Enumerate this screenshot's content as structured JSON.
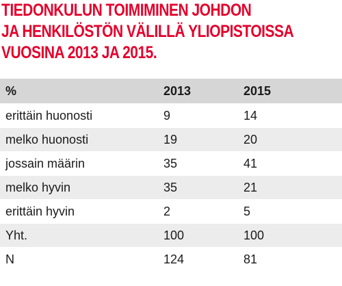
{
  "chart_data": {
    "type": "table",
    "title_lines": [
      "TIEDONKULUN TOIMIMINEN JOHDON",
      "JA HENKILÖSTÖN VÄLILLÄ YLIOPISTOISSA",
      "VUOSINA 2013 JA 2015."
    ],
    "columns": [
      "%",
      "2013",
      "2015"
    ],
    "rows": [
      {
        "label": "erittäin huonosti",
        "v2013": "9",
        "v2015": "14"
      },
      {
        "label": "melko huonosti",
        "v2013": "19",
        "v2015": "20"
      },
      {
        "label": "jossain määrin",
        "v2013": "35",
        "v2015": "41"
      },
      {
        "label": "melko hyvin",
        "v2013": "35",
        "v2015": "21"
      },
      {
        "label": "erittäin hyvin",
        "v2013": "2",
        "v2015": "5"
      },
      {
        "label": "Yht.",
        "v2013": "100",
        "v2015": "100"
      },
      {
        "label": "N",
        "v2013": "124",
        "v2015": "81"
      }
    ]
  },
  "colors": {
    "title": "#e4002b",
    "header_bg": "#d6d6d6",
    "row_alt_bg": "#ececec",
    "row_bg": "#ffffff",
    "text": "#1a1a1a"
  }
}
